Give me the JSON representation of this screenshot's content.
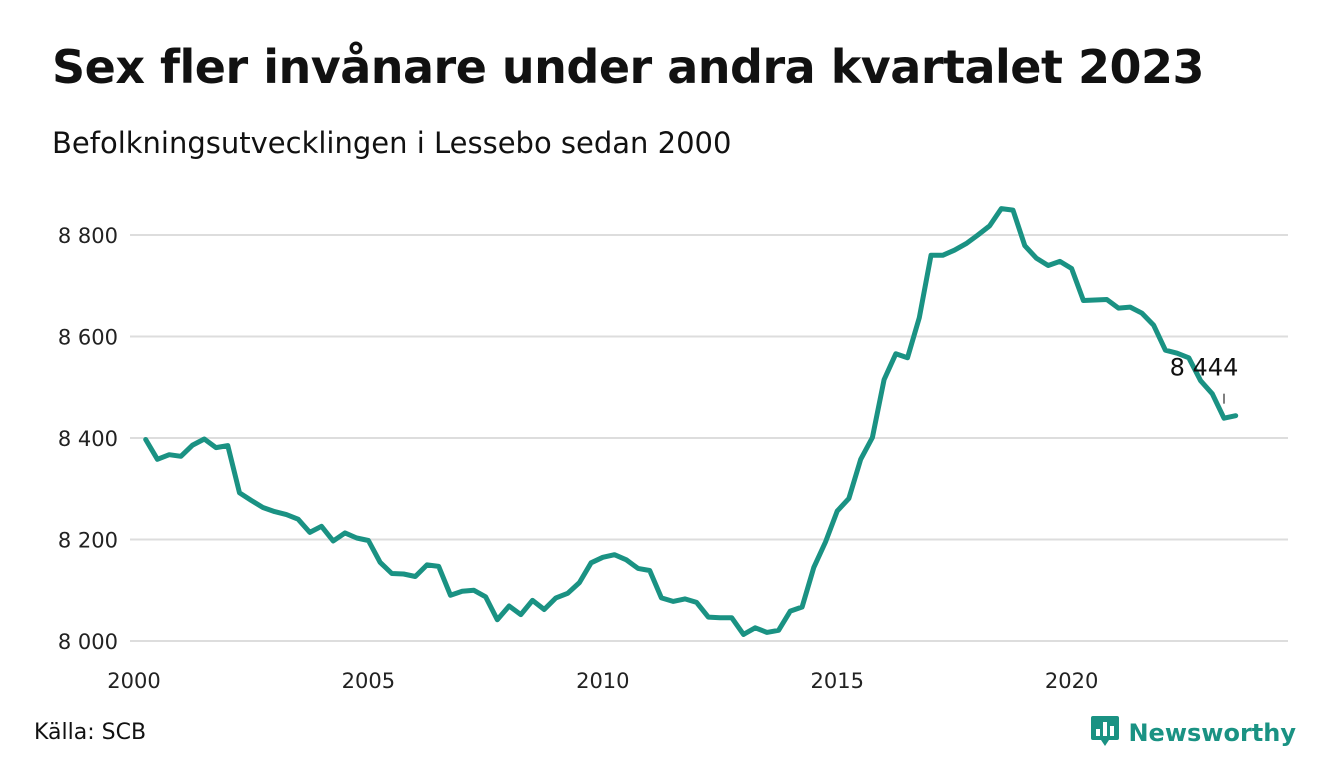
{
  "header": {
    "title": "Sex fler invånare under andra kvartalet 2023",
    "subtitle": "Befolkningsutvecklingen i Lessebo sedan 2000"
  },
  "footer": {
    "source": "Källa: SCB",
    "brand": "Newsworthy",
    "brand_icon": "bar-chart-speech-bubble-icon"
  },
  "colors": {
    "line": "#1a9283",
    "grid": "#dddddd",
    "brand": "#1a9283"
  },
  "chart_data": {
    "type": "line",
    "title": "Sex fler invånare under andra kvartalet 2023",
    "subtitle": "Befolkningsutvecklingen i Lessebo sedan 2000",
    "xlabel": "",
    "ylabel": "",
    "xlim": [
      2000,
      2023.75
    ],
    "ylim": [
      8000,
      8880
    ],
    "grid": true,
    "x_ticks": [
      2000,
      2005,
      2010,
      2015,
      2020
    ],
    "x_tick_labels": [
      "2000",
      "2005",
      "2010",
      "2015",
      "2020"
    ],
    "y_ticks": [
      8000,
      8200,
      8400,
      8600,
      8800
    ],
    "y_tick_labels": [
      "8 000",
      "8 200",
      "8 400",
      "8 600",
      "8 800"
    ],
    "annotation": {
      "x": 2023.25,
      "y": 8444,
      "label": "8 444"
    },
    "series": [
      {
        "x": [
          2000.25,
          2000.5,
          2000.75,
          2001,
          2001.25,
          2001.5,
          2001.75,
          2002,
          2002.25,
          2002.5,
          2002.75,
          2003,
          2003.25,
          2003.5,
          2003.75,
          2004,
          2004.25,
          2004.5,
          2004.75,
          2005,
          2005.25,
          2005.5,
          2005.75,
          2006,
          2006.25,
          2006.5,
          2006.75,
          2007,
          2007.25,
          2007.5,
          2007.75,
          2008,
          2008.25,
          2008.5,
          2008.75,
          2009,
          2009.25,
          2009.5,
          2009.75,
          2010,
          2010.25,
          2010.5,
          2010.75,
          2011,
          2011.25,
          2011.5,
          2011.75,
          2012,
          2012.25,
          2012.5,
          2012.75,
          2013,
          2013.25,
          2013.5,
          2013.75,
          2014,
          2014.25,
          2014.5,
          2014.75,
          2015,
          2015.25,
          2015.5,
          2015.75,
          2016,
          2016.25,
          2016.5,
          2016.75,
          2017,
          2017.25,
          2017.5,
          2017.75,
          2018,
          2018.25,
          2018.5,
          2018.75,
          2019,
          2019.25,
          2019.5,
          2019.75,
          2020,
          2020.25,
          2020.5,
          2020.75,
          2021,
          2021.25,
          2021.5,
          2021.75,
          2022,
          2022.25,
          2022.5,
          2022.75,
          2023,
          2023.25,
          2023.5
        ],
        "values": [
          8397,
          8358,
          8367,
          8364,
          8386,
          8398,
          8381,
          8385,
          8292,
          8277,
          8263,
          8255,
          8249,
          8240,
          8214,
          8226,
          8197,
          8213,
          8203,
          8198,
          8155,
          8133,
          8132,
          8127,
          8150,
          8147,
          8090,
          8098,
          8100,
          8087,
          8042,
          8069,
          8052,
          8080,
          8062,
          8085,
          8094,
          8115,
          8154,
          8165,
          8170,
          8160,
          8143,
          8139,
          8085,
          8078,
          8083,
          8076,
          8047,
          8046,
          8046,
          8013,
          8026,
          8017,
          8021,
          8059,
          8067,
          8145,
          8195,
          8256,
          8281,
          8358,
          8401,
          8515,
          8566,
          8558,
          8637,
          8760,
          8760,
          8770,
          8783,
          8800,
          8818,
          8852,
          8849,
          8779,
          8754,
          8740,
          8748,
          8734,
          8671,
          8672,
          8673,
          8656,
          8658,
          8646,
          8622,
          8573,
          8567,
          8558,
          8513,
          8487,
          8439,
          8444
        ]
      }
    ]
  }
}
